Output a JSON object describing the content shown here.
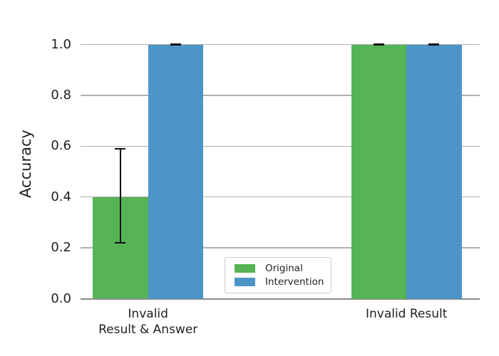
{
  "chart_data": {
    "type": "bar",
    "title": "",
    "xlabel": "",
    "ylabel": "Accuracy",
    "categories": [
      "Invalid\nResult & Answer",
      "Invalid Result"
    ],
    "series": [
      {
        "name": "Original",
        "color": "#56b356",
        "values": [
          0.4,
          1.0
        ],
        "ci_low": [
          0.22,
          1.0
        ],
        "ci_high": [
          0.59,
          1.0
        ]
      },
      {
        "name": "Intervention",
        "color": "#4d94c8",
        "values": [
          1.0,
          1.0
        ],
        "ci_low": [
          1.0,
          1.0
        ],
        "ci_high": [
          1.0,
          1.0
        ]
      }
    ],
    "y_ticks": [
      "0.0",
      "0.2",
      "0.4",
      "0.6",
      "0.8",
      "1.0"
    ],
    "y_tick_values": [
      0.0,
      0.2,
      0.4,
      0.6,
      0.8,
      1.0
    ],
    "ylim": [
      0.0,
      1.057
    ],
    "grid": "horizontal",
    "legend_position": "lower center, inside plot",
    "error_bar_color": "#111111",
    "gridline_color": "#b0b0b0",
    "axis_line_color": "#8a8a8a",
    "text_color": "#1f1f1f",
    "background_color": "#ffffff"
  }
}
